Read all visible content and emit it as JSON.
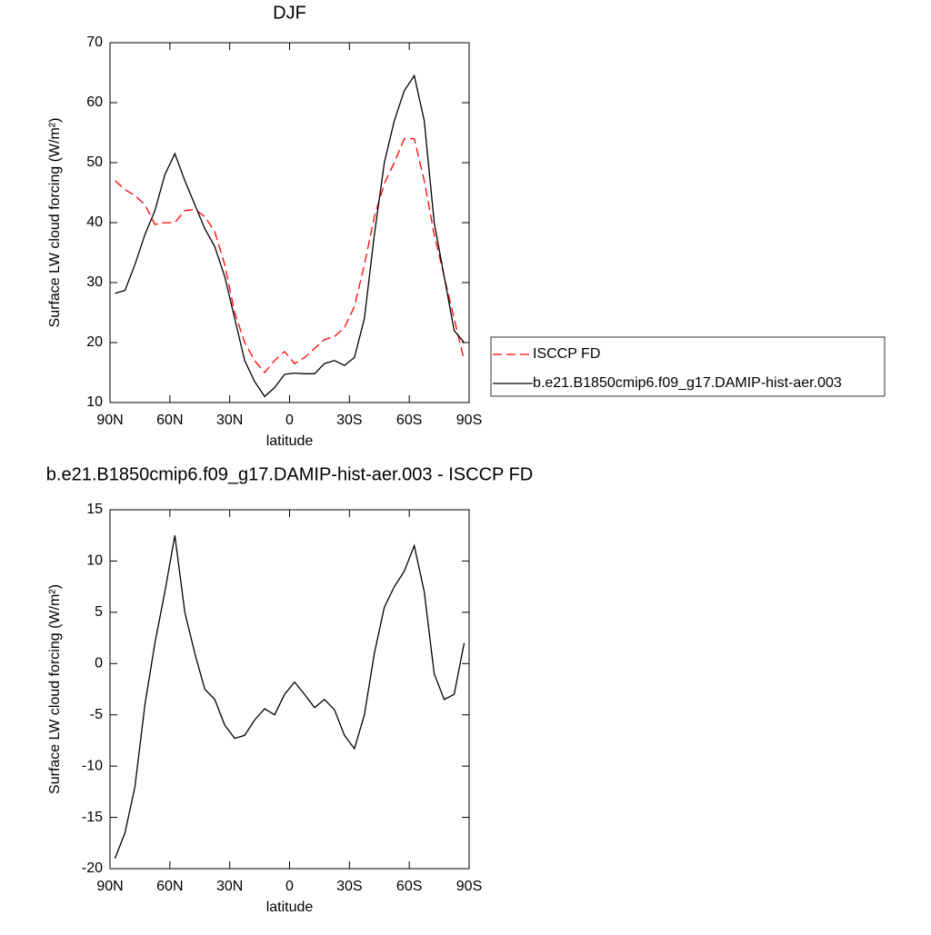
{
  "chart_data": [
    {
      "type": "line",
      "title": "DJF",
      "x_label": "latitude",
      "y_label": "Surface LW cloud forcing (W/m²)",
      "x": [
        87.5,
        82.5,
        77.5,
        72.5,
        67.5,
        62.5,
        57.5,
        52.5,
        47.5,
        42.5,
        37.5,
        32.5,
        27.5,
        22.5,
        17.5,
        12.5,
        7.5,
        2.5,
        -2.5,
        -7.5,
        -12.5,
        -17.5,
        -22.5,
        -27.5,
        -32.5,
        -37.5,
        -42.5,
        -47.5,
        -52.5,
        -57.5,
        -62.5,
        -67.5,
        -72.5,
        -77.5,
        -82.5,
        -87.5
      ],
      "series": [
        {
          "name": "ISCCP FD",
          "color": "#ff0000",
          "dash": true,
          "values": [
            47,
            45.5,
            44.5,
            43,
            39.7,
            40,
            40,
            42,
            42.2,
            41,
            38.5,
            33,
            25,
            20,
            17,
            15,
            17,
            18.5,
            16.5,
            17.5,
            19,
            20.5,
            21,
            22.5,
            26,
            33,
            41,
            46.5,
            50,
            54,
            54,
            47,
            38,
            31,
            24,
            17
          ]
        },
        {
          "name": "b.e21.B1850cmip6.f09_g17.DAMIP-hist-aer.003",
          "color": "#000000",
          "dash": false,
          "values": [
            28.2,
            28.7,
            33,
            38,
            42,
            48,
            51.5,
            47,
            43,
            39,
            36,
            31,
            24,
            17,
            13.5,
            11,
            12.5,
            14.7,
            14.9,
            14.8,
            14.8,
            16.5,
            17,
            16.2,
            17.5,
            24,
            38,
            50,
            57,
            62,
            64.5,
            57,
            40,
            31,
            22,
            20
          ]
        }
      ],
      "xlim": [
        90,
        -90
      ],
      "xticks": [
        {
          "value": 90,
          "label": "90N"
        },
        {
          "value": 60,
          "label": "60N"
        },
        {
          "value": 30,
          "label": "30N"
        },
        0,
        {
          "value": -30,
          "label": "30S"
        },
        {
          "value": -60,
          "label": "60S"
        },
        {
          "value": -90,
          "label": "90S"
        }
      ],
      "ylim": [
        10,
        70
      ],
      "yticks": [
        10,
        20,
        30,
        40,
        50,
        60,
        70
      ],
      "legend": "right"
    },
    {
      "type": "line",
      "title": "b.e21.B1850cmip6.f09_g17.DAMIP-hist-aer.003 - ISCCP FD",
      "x_label": "latitude",
      "y_label": "Surface LW cloud forcing (W/m²)",
      "x": [
        87.5,
        82.5,
        77.5,
        72.5,
        67.5,
        62.5,
        57.5,
        52.5,
        47.5,
        42.5,
        37.5,
        32.5,
        27.5,
        22.5,
        17.5,
        12.5,
        7.5,
        2.5,
        -2.5,
        -7.5,
        -12.5,
        -17.5,
        -22.5,
        -27.5,
        -32.5,
        -37.5,
        -42.5,
        -47.5,
        -52.5,
        -57.5,
        -62.5,
        -67.5,
        -72.5,
        -77.5,
        -82.5,
        -87.5
      ],
      "series": [
        {
          "color": "#000000",
          "dash": false,
          "values": [
            -19,
            -16.5,
            -12,
            -4,
            2,
            7,
            12.5,
            5,
            1,
            -2.5,
            -3.5,
            -6,
            -7.3,
            -7,
            -5.5,
            -4.4,
            -5,
            -3,
            -1.8,
            -3,
            -4.3,
            -3.5,
            -4.5,
            -7,
            -8.3,
            -5,
            1,
            5.5,
            7.5,
            9,
            11.5,
            7,
            -1,
            -3.5,
            -3,
            2
          ]
        }
      ],
      "xlim": [
        90,
        -90
      ],
      "xticks": [
        {
          "value": 90,
          "label": "90N"
        },
        {
          "value": 60,
          "label": "60N"
        },
        {
          "value": 30,
          "label": "30N"
        },
        0,
        {
          "value": -30,
          "label": "30S"
        },
        {
          "value": -60,
          "label": "60S"
        },
        {
          "value": -90,
          "label": "90S"
        }
      ],
      "ylim": [
        -20,
        15
      ],
      "yticks": [
        -20,
        -15,
        -10,
        -5,
        0,
        5,
        10,
        15
      ]
    }
  ]
}
